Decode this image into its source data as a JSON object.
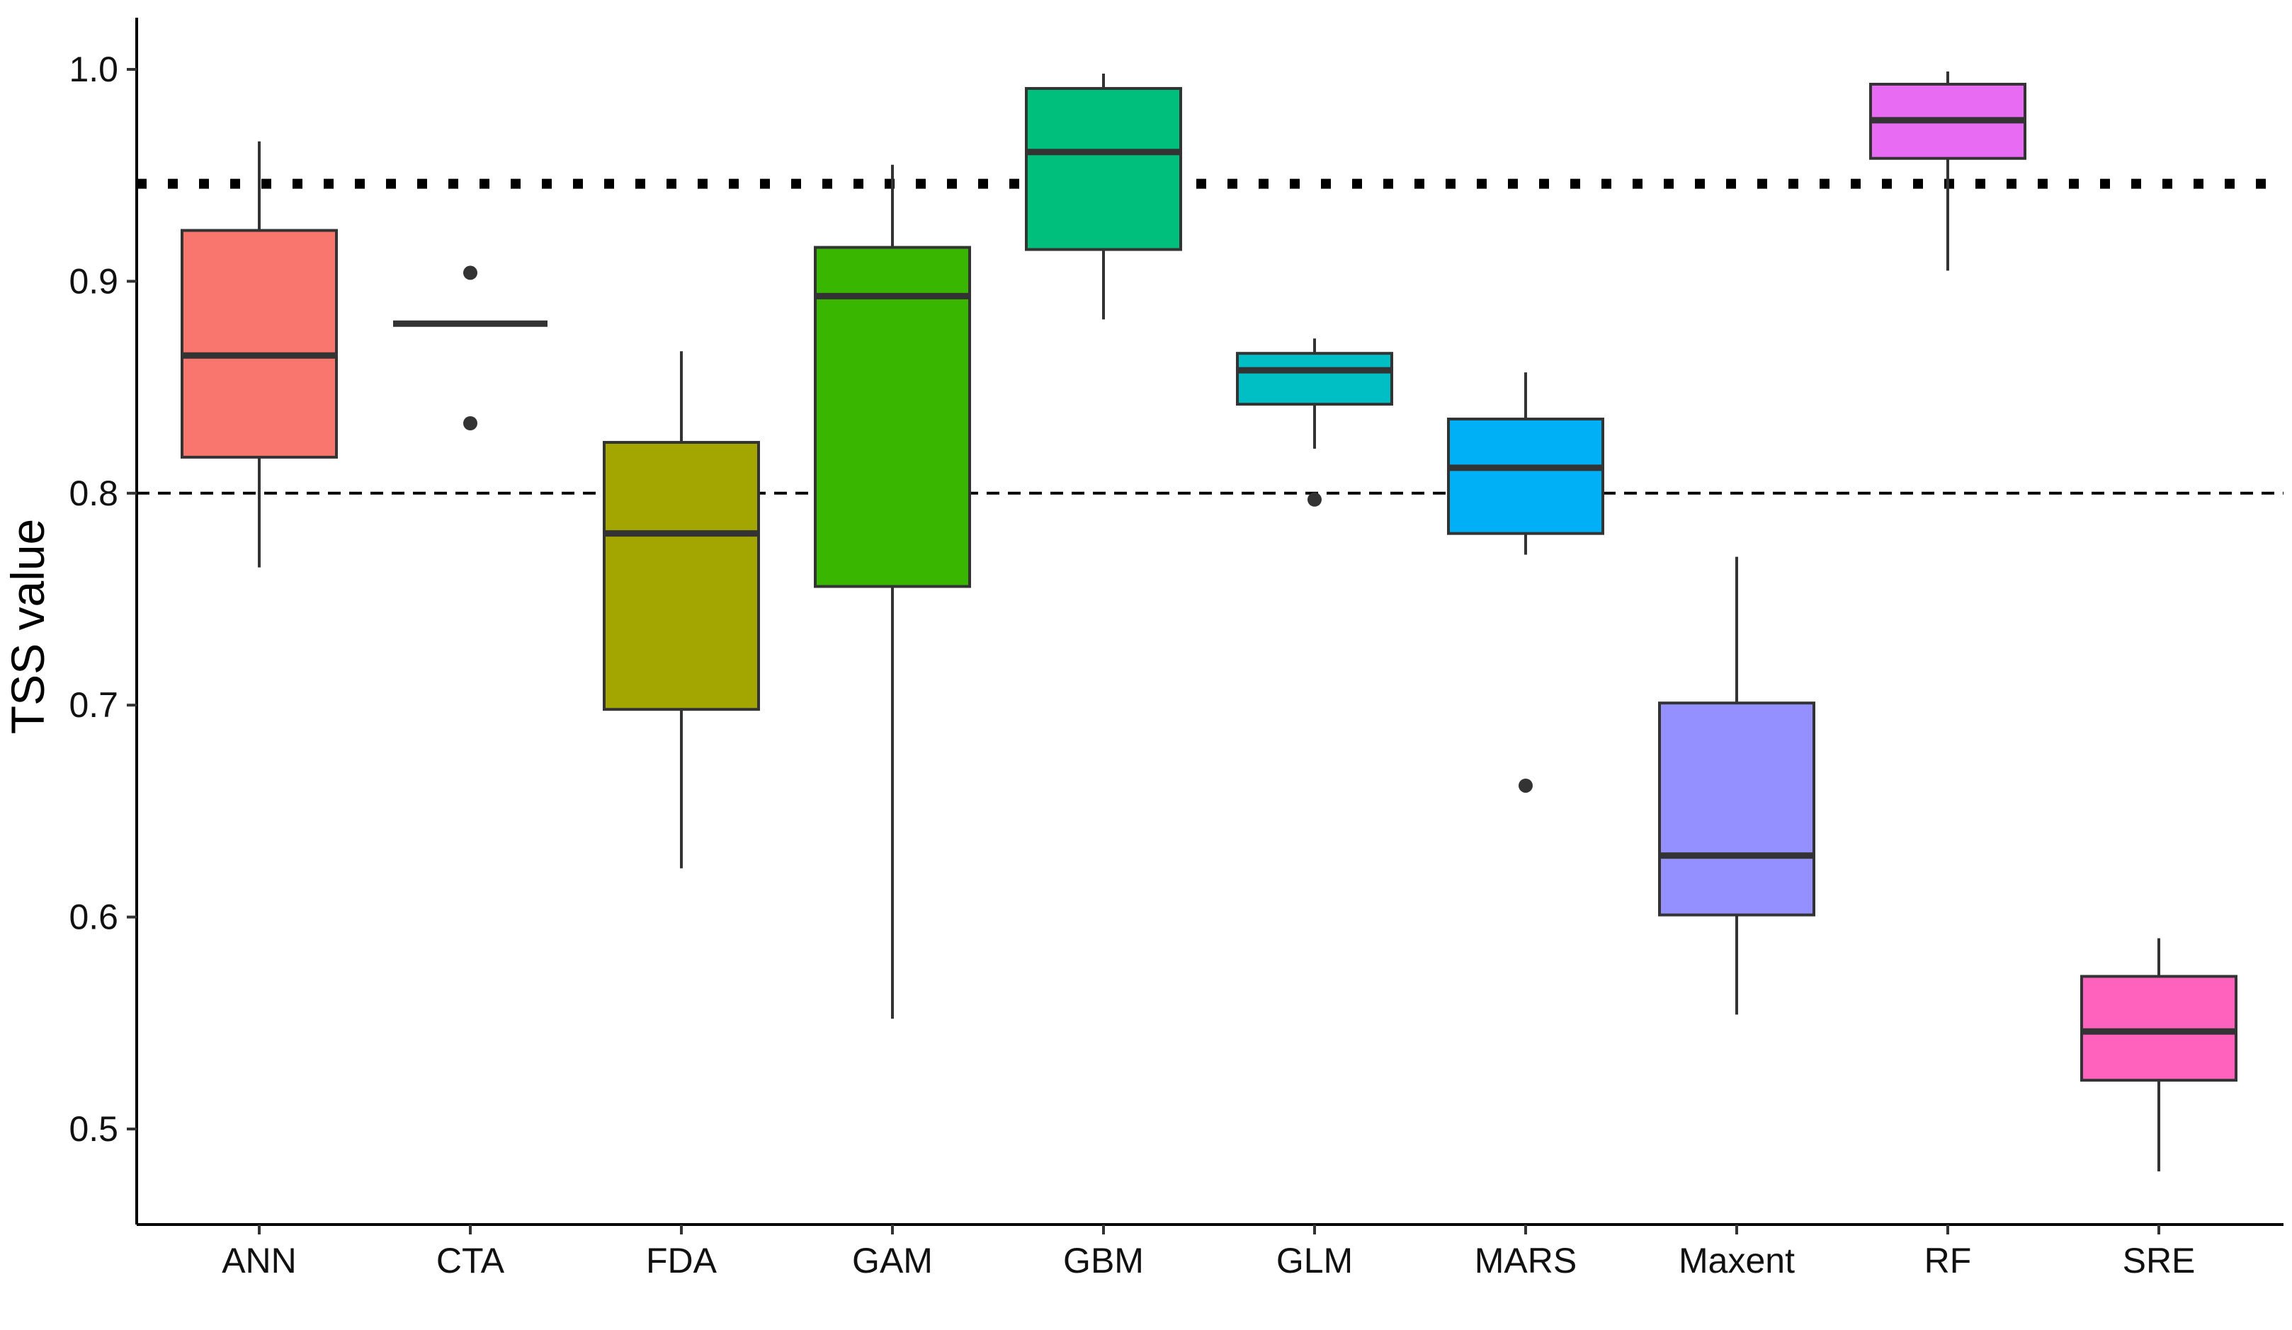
{
  "chart_data": {
    "type": "boxplot",
    "title": "",
    "xlabel": "",
    "ylabel": "TSS value",
    "ylim": [
      0.455,
      1.025
    ],
    "yticks": [
      0.5,
      0.6,
      0.7,
      0.8,
      0.9,
      1.0
    ],
    "ytick_labels": [
      "0.5",
      "0.6",
      "0.7",
      "0.8",
      "0.9",
      "1.0"
    ],
    "grid": false,
    "legend": "none",
    "reference_lines": [
      {
        "value": 0.946,
        "style": "dotted"
      },
      {
        "value": 0.8,
        "style": "dashed"
      }
    ],
    "categories": [
      "ANN",
      "CTA",
      "FDA",
      "GAM",
      "GBM",
      "GLM",
      "MARS",
      "Maxent",
      "RF",
      "SRE"
    ],
    "boxes": [
      {
        "category": "ANN",
        "color": "#F8766D",
        "whisker_low": 0.765,
        "q1": 0.817,
        "median": 0.865,
        "q3": 0.924,
        "whisker_high": 0.966,
        "outliers": []
      },
      {
        "category": "CTA",
        "color": "#D89000",
        "whisker_low": 0.88,
        "q1": 0.88,
        "median": 0.88,
        "q3": 0.88,
        "whisker_high": 0.88,
        "outliers": [
          0.904,
          0.833
        ]
      },
      {
        "category": "FDA",
        "color": "#A3A500",
        "whisker_low": 0.623,
        "q1": 0.698,
        "median": 0.781,
        "q3": 0.824,
        "whisker_high": 0.867,
        "outliers": []
      },
      {
        "category": "GAM",
        "color": "#39B600",
        "whisker_low": 0.552,
        "q1": 0.756,
        "median": 0.893,
        "q3": 0.916,
        "whisker_high": 0.955,
        "outliers": []
      },
      {
        "category": "GBM",
        "color": "#00BF7D",
        "whisker_low": 0.882,
        "q1": 0.915,
        "median": 0.961,
        "q3": 0.991,
        "whisker_high": 0.998,
        "outliers": []
      },
      {
        "category": "GLM",
        "color": "#00BFC4",
        "whisker_low": 0.821,
        "q1": 0.842,
        "median": 0.858,
        "q3": 0.866,
        "whisker_high": 0.873,
        "outliers": [
          0.797
        ]
      },
      {
        "category": "MARS",
        "color": "#00B0F6",
        "whisker_low": 0.771,
        "q1": 0.781,
        "median": 0.812,
        "q3": 0.835,
        "whisker_high": 0.857,
        "outliers": [
          0.662
        ]
      },
      {
        "category": "Maxent",
        "color": "#9590FF",
        "whisker_low": 0.554,
        "q1": 0.601,
        "median": 0.629,
        "q3": 0.701,
        "whisker_high": 0.77,
        "outliers": []
      },
      {
        "category": "RF",
        "color": "#E76BF3",
        "whisker_low": 0.905,
        "q1": 0.958,
        "median": 0.976,
        "q3": 0.993,
        "whisker_high": 0.999,
        "outliers": []
      },
      {
        "category": "SRE",
        "color": "#FF62BC",
        "whisker_low": 0.48,
        "q1": 0.523,
        "median": 0.546,
        "q3": 0.572,
        "whisker_high": 0.59,
        "outliers": []
      }
    ]
  }
}
